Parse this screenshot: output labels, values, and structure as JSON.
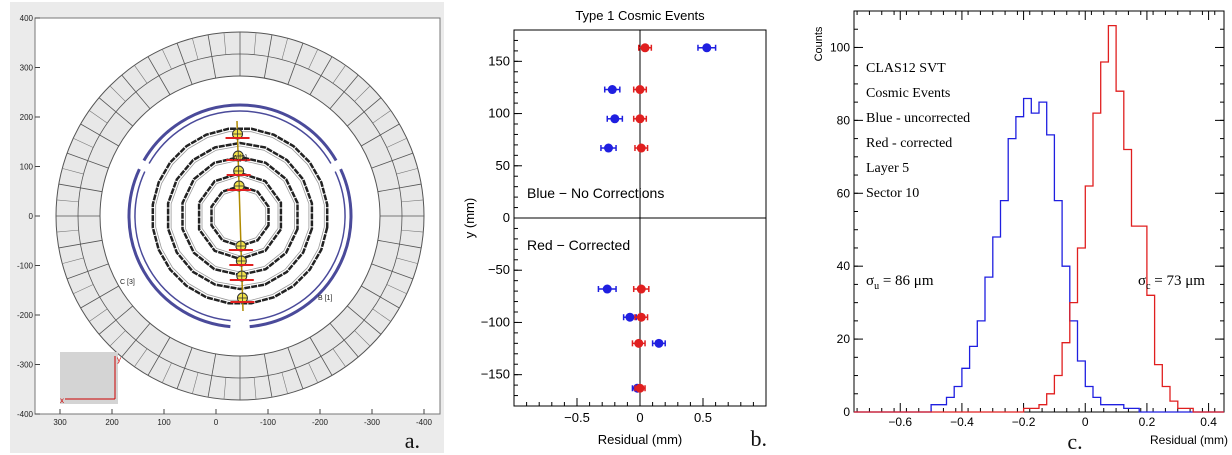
{
  "panel_a": {
    "letter": "a.",
    "x_ticks": [
      "300",
      "200",
      "100",
      "0",
      "-100",
      "-200",
      "-300",
      "-400"
    ],
    "y_ticks": [
      "400",
      "300",
      "200",
      "100",
      "0",
      "-100",
      "-200",
      "-300",
      "-400"
    ],
    "region_labels": [
      "A [2]",
      "B [1]",
      "C [3]"
    ],
    "axis_letters": [
      "y",
      "x"
    ]
  },
  "panel_b": {
    "letter": "b."
  },
  "panel_c": {
    "letter": "c."
  },
  "chart_data": [
    {
      "type": "scatter",
      "title": "Type 1 Cosmic Events",
      "xlabel": "Residual (mm)",
      "ylabel": "y (mm)",
      "xlim": [
        -1.0,
        1.0
      ],
      "ylim": [
        -180,
        180
      ],
      "xticks": [
        -0.5,
        0,
        0.5
      ],
      "xtick_labels": [
        "−0.5",
        "0",
        "0.5"
      ],
      "yticks": [
        150,
        100,
        50,
        0,
        -50,
        -100,
        -150
      ],
      "ytick_labels": [
        "150",
        "100",
        "50",
        "0",
        "−50",
        "−100",
        "−150"
      ],
      "annotations": [
        "Blue − No Corrections",
        "Red − Corrected"
      ],
      "series": [
        {
          "color": "#1f1fe0",
          "points": [
            {
              "x": 0.53,
              "y": 163,
              "err": 0.07
            },
            {
              "x": -0.22,
              "y": 123,
              "err": 0.06
            },
            {
              "x": -0.2,
              "y": 95,
              "err": 0.06
            },
            {
              "x": -0.25,
              "y": 67,
              "err": 0.06
            },
            {
              "x": -0.26,
              "y": -68,
              "err": 0.07
            },
            {
              "x": -0.08,
              "y": -95,
              "err": 0.05
            },
            {
              "x": 0.15,
              "y": -120,
              "err": 0.05
            },
            {
              "x": -0.02,
              "y": -163,
              "err": 0.04
            }
          ]
        },
        {
          "color": "#e01f1f",
          "points": [
            {
              "x": 0.04,
              "y": 163,
              "err": 0.05
            },
            {
              "x": 0.0,
              "y": 123,
              "err": 0.05
            },
            {
              "x": 0.0,
              "y": 95,
              "err": 0.05
            },
            {
              "x": 0.01,
              "y": 67,
              "err": 0.05
            },
            {
              "x": 0.01,
              "y": -68,
              "err": 0.06
            },
            {
              "x": 0.01,
              "y": -95,
              "err": 0.05
            },
            {
              "x": -0.01,
              "y": -120,
              "err": 0.05
            },
            {
              "x": 0.0,
              "y": -163,
              "err": 0.04
            }
          ]
        }
      ]
    },
    {
      "type": "histogram",
      "xlabel": "Residual (mm)",
      "ylabel": "Counts",
      "xlim": [
        -0.75,
        0.45
      ],
      "ylim": [
        0,
        110
      ],
      "xticks": [
        -0.6,
        -0.4,
        -0.2,
        0,
        0.2,
        0.4
      ],
      "xtick_labels": [
        "−0.6",
        "−0.4",
        "−0.2",
        "0",
        "0.2",
        "0.4"
      ],
      "yticks": [
        0,
        20,
        40,
        60,
        80,
        100
      ],
      "ytick_labels": [
        "0",
        "20",
        "40",
        "60",
        "80",
        "100"
      ],
      "legend_lines": [
        "CLAS12 SVT",
        "Cosmic Events",
        "Blue - uncorrected",
        "Red - corrected",
        "Layer 5",
        "Sector 10"
      ],
      "sigma_u": {
        "symbol": "σ",
        "sub": "u",
        "value": " = 86 μm"
      },
      "sigma_c": {
        "symbol": "σ",
        "sub": "c",
        "value": " = 73 μm"
      },
      "bin_width": 0.025,
      "series": [
        {
          "color": "#1f1fe0",
          "start": -0.75,
          "values": [
            0,
            0,
            0,
            0,
            0,
            0,
            0,
            0,
            0,
            0,
            2,
            2,
            4,
            7,
            12,
            18,
            25,
            37,
            48,
            58,
            75,
            81,
            86,
            82,
            85,
            76,
            58,
            40,
            25,
            14,
            7,
            4,
            2,
            2,
            2,
            1,
            1,
            0,
            0,
            0,
            0,
            0,
            0,
            0,
            0,
            0,
            0,
            0
          ]
        },
        {
          "color": "#e01f1f",
          "start": -0.75,
          "values": [
            0,
            0,
            0,
            0,
            0,
            0,
            0,
            0,
            0,
            0,
            0,
            0,
            0,
            0,
            0,
            0,
            0,
            0,
            0,
            0,
            0,
            0,
            1,
            1,
            2,
            5,
            10,
            19,
            30,
            45,
            62,
            82,
            96,
            106,
            88,
            72,
            51,
            51,
            32,
            13,
            7,
            3,
            1,
            1,
            0,
            0,
            0,
            0
          ]
        }
      ]
    }
  ]
}
